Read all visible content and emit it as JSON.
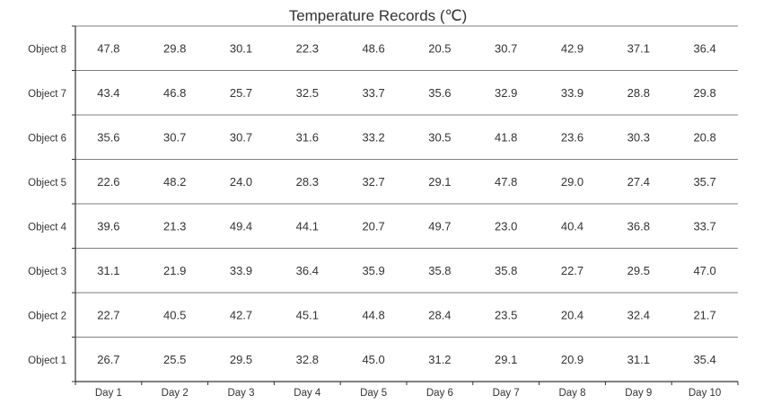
{
  "chart_data": {
    "type": "table",
    "title": "Temperature Records (℃)",
    "columns": [
      "Day 1",
      "Day 2",
      "Day 3",
      "Day 4",
      "Day 5",
      "Day 6",
      "Day 7",
      "Day 8",
      "Day 9",
      "Day 10"
    ],
    "rows": [
      {
        "label": "Object 8",
        "values": [
          "47.8",
          "29.8",
          "30.1",
          "22.3",
          "48.6",
          "20.5",
          "30.7",
          "42.9",
          "37.1",
          "36.4"
        ]
      },
      {
        "label": "Object 7",
        "values": [
          "43.4",
          "46.8",
          "25.7",
          "32.5",
          "33.7",
          "35.6",
          "32.9",
          "33.9",
          "28.8",
          "29.8"
        ]
      },
      {
        "label": "Object 6",
        "values": [
          "35.6",
          "30.7",
          "30.7",
          "31.6",
          "33.2",
          "30.5",
          "41.8",
          "23.6",
          "30.3",
          "20.8"
        ]
      },
      {
        "label": "Object 5",
        "values": [
          "22.6",
          "48.2",
          "24.0",
          "28.3",
          "32.7",
          "29.1",
          "47.8",
          "29.0",
          "27.4",
          "35.7"
        ]
      },
      {
        "label": "Object 4",
        "values": [
          "39.6",
          "21.3",
          "49.4",
          "44.1",
          "20.7",
          "49.7",
          "23.0",
          "40.4",
          "36.8",
          "33.7"
        ]
      },
      {
        "label": "Object 3",
        "values": [
          "31.1",
          "21.9",
          "33.9",
          "36.4",
          "35.9",
          "35.8",
          "35.8",
          "22.7",
          "29.5",
          "47.0"
        ]
      },
      {
        "label": "Object 2",
        "values": [
          "22.7",
          "40.5",
          "42.7",
          "45.1",
          "44.8",
          "28.4",
          "23.5",
          "20.4",
          "32.4",
          "21.7"
        ]
      },
      {
        "label": "Object 1",
        "values": [
          "26.7",
          "25.5",
          "29.5",
          "32.8",
          "45.0",
          "31.2",
          "29.1",
          "20.9",
          "31.1",
          "35.4"
        ]
      }
    ]
  }
}
